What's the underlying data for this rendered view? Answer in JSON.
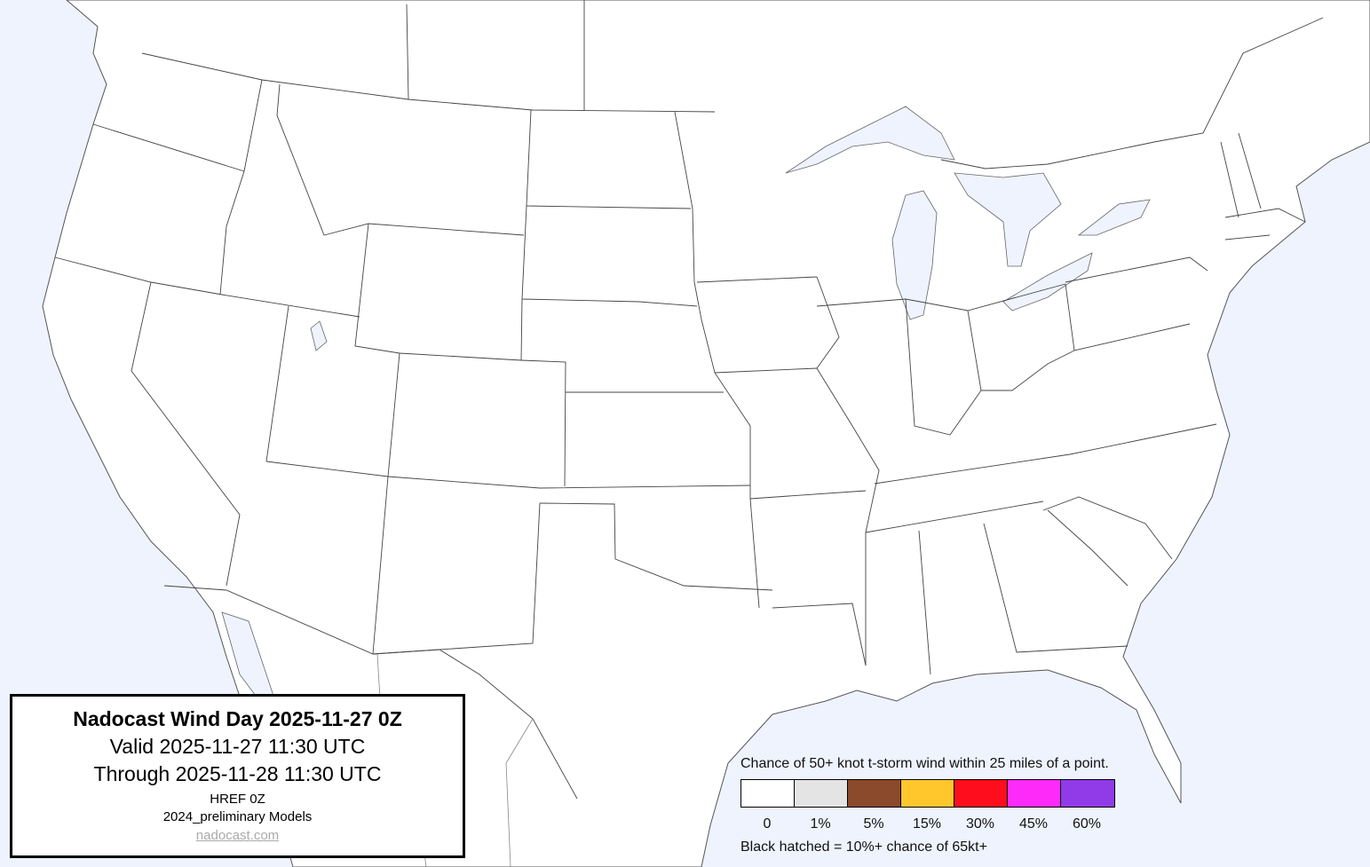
{
  "title_box": {
    "title": "Nadocast Wind Day 2025-11-27 0Z",
    "valid": "Valid 2025-11-27 11:30 UTC",
    "through": "Through 2025-11-28 11:30 UTC",
    "model": "HREF 0Z",
    "models_version": "2024_preliminary Models",
    "link": "nadocast.com"
  },
  "legend": {
    "caption": "Chance of 50+ knot t-storm wind within 25 miles of a point.",
    "bins": [
      {
        "label": "0",
        "color": "#ffffff"
      },
      {
        "label": "1%",
        "color": "#e4e4e4"
      },
      {
        "label": "5%",
        "color": "#8b4a2b"
      },
      {
        "label": "15%",
        "color": "#ffc72c"
      },
      {
        "label": "30%",
        "color": "#fe0d1c"
      },
      {
        "label": "45%",
        "color": "#fe2af9"
      },
      {
        "label": "60%",
        "color": "#913be8"
      }
    ],
    "hatch_note": "Black hatched = 10%+ chance of 65kt+"
  },
  "map": {
    "water_color": "#eef3fd",
    "land_color": "#ffffff",
    "forecast_areas": "none shown"
  }
}
